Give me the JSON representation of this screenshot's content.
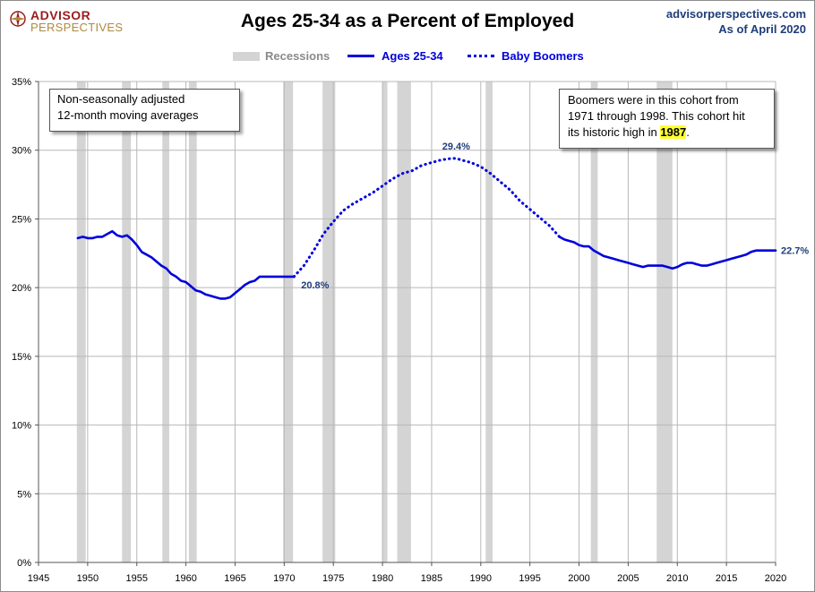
{
  "brand": {
    "line1": "ADVISOR",
    "line2": "PERSPECTIVES"
  },
  "title": "Ages 25-34 as a Percent of Employed",
  "source": {
    "site": "advisorperspectives.com",
    "date": "As of April 2020"
  },
  "legend": {
    "recessions": "Recessions",
    "ages": "Ages 25-34",
    "boomers": "Baby Boomers"
  },
  "notes": {
    "left": [
      "Non-seasonally adjusted",
      "12-month moving averages"
    ],
    "right_line1": "Boomers were in this cohort from",
    "right_line2": "1971  through 1998.  This cohort hit",
    "right_line3_pre": "its historic high in ",
    "right_line3_hl": "1987",
    "right_line3_post": "."
  },
  "colors": {
    "series": "#0000dc",
    "recession": "#d4d4d4",
    "grid": "#b8b8b8",
    "label": "#1f3d7a"
  },
  "chart_data": {
    "type": "line",
    "title": "Ages 25-34 as a Percent of Employed",
    "xlabel": "",
    "ylabel": "",
    "xlim": [
      1945,
      2020
    ],
    "ylim": [
      0,
      35
    ],
    "x_ticks": [
      1945,
      1950,
      1955,
      1960,
      1965,
      1970,
      1975,
      1980,
      1985,
      1990,
      1995,
      2000,
      2005,
      2010,
      2015,
      2020
    ],
    "y_ticks": [
      0,
      5,
      10,
      15,
      20,
      25,
      30,
      35
    ],
    "y_tick_labels": [
      "0%",
      "5%",
      "10%",
      "15%",
      "20%",
      "25%",
      "30%",
      "35%"
    ],
    "grid": true,
    "legend_position": "top-center",
    "recessions": [
      [
        1948.9,
        1949.8
      ],
      [
        1953.5,
        1954.4
      ],
      [
        1957.6,
        1958.3
      ],
      [
        1960.3,
        1961.1
      ],
      [
        1969.9,
        1970.9
      ],
      [
        1973.9,
        1975.2
      ],
      [
        1980.0,
        1980.5
      ],
      [
        1981.5,
        1982.9
      ],
      [
        1990.5,
        1991.2
      ],
      [
        2001.2,
        2001.9
      ],
      [
        2007.9,
        2009.5
      ]
    ],
    "series": [
      {
        "name": "Ages 25-34",
        "style": "solid",
        "x": [
          1949.0,
          1949.5,
          1950.0,
          1950.5,
          1951.0,
          1951.5,
          1952.0,
          1952.5,
          1953.0,
          1953.5,
          1954.0,
          1954.5,
          1955.0,
          1955.5,
          1956.0,
          1956.5,
          1957.0,
          1957.5,
          1958.0,
          1958.5,
          1959.0,
          1959.5,
          1960.0,
          1960.5,
          1961.0,
          1961.5,
          1962.0,
          1962.5,
          1963.0,
          1963.5,
          1964.0,
          1964.5,
          1965.0,
          1965.5,
          1966.0,
          1966.5,
          1967.0,
          1967.5,
          1968.0,
          1968.5,
          1969.0,
          1969.5,
          1970.0,
          1970.5,
          1971.0
        ],
        "y": [
          23.6,
          23.7,
          23.6,
          23.6,
          23.7,
          23.7,
          23.9,
          24.1,
          23.8,
          23.7,
          23.8,
          23.5,
          23.1,
          22.6,
          22.4,
          22.2,
          21.9,
          21.6,
          21.4,
          21.0,
          20.8,
          20.5,
          20.4,
          20.1,
          19.8,
          19.7,
          19.5,
          19.4,
          19.3,
          19.2,
          19.2,
          19.3,
          19.6,
          19.9,
          20.2,
          20.4,
          20.5,
          20.8,
          20.8,
          20.8,
          20.8,
          20.8,
          20.8,
          20.8,
          20.8
        ]
      },
      {
        "name": "Baby Boomers",
        "style": "dotted",
        "x": [
          1971.0,
          1972.0,
          1973.0,
          1974.0,
          1975.0,
          1976.0,
          1977.0,
          1978.0,
          1979.0,
          1980.0,
          1981.0,
          1982.0,
          1983.0,
          1984.0,
          1985.0,
          1986.0,
          1987.0,
          1987.5,
          1988.0,
          1989.0,
          1990.0,
          1991.0,
          1992.0,
          1993.0,
          1994.0,
          1995.0,
          1996.0,
          1997.0,
          1998.0
        ],
        "y": [
          20.8,
          21.6,
          22.7,
          23.9,
          24.8,
          25.6,
          26.1,
          26.5,
          26.9,
          27.4,
          27.9,
          28.3,
          28.5,
          28.9,
          29.1,
          29.3,
          29.4,
          29.4,
          29.3,
          29.1,
          28.8,
          28.3,
          27.7,
          27.1,
          26.3,
          25.7,
          25.1,
          24.5,
          23.7
        ]
      },
      {
        "name": "Ages 25-34 (after 1998)",
        "style": "solid",
        "x": [
          1998.0,
          1998.5,
          1999.0,
          1999.5,
          2000.0,
          2000.5,
          2001.0,
          2001.5,
          2002.0,
          2002.5,
          2003.0,
          2003.5,
          2004.0,
          2004.5,
          2005.0,
          2005.5,
          2006.0,
          2006.5,
          2007.0,
          2007.5,
          2008.0,
          2008.5,
          2009.0,
          2009.5,
          2010.0,
          2010.5,
          2011.0,
          2011.5,
          2012.0,
          2012.5,
          2013.0,
          2013.5,
          2014.0,
          2014.5,
          2015.0,
          2015.5,
          2016.0,
          2016.5,
          2017.0,
          2017.5,
          2018.0,
          2018.5,
          2019.0,
          2019.5,
          2020.0
        ],
        "y": [
          23.7,
          23.5,
          23.4,
          23.3,
          23.1,
          23.0,
          23.0,
          22.7,
          22.5,
          22.3,
          22.2,
          22.1,
          22.0,
          21.9,
          21.8,
          21.7,
          21.6,
          21.5,
          21.6,
          21.6,
          21.6,
          21.6,
          21.5,
          21.4,
          21.5,
          21.7,
          21.8,
          21.8,
          21.7,
          21.6,
          21.6,
          21.7,
          21.8,
          21.9,
          22.0,
          22.1,
          22.2,
          22.3,
          22.4,
          22.6,
          22.7,
          22.7,
          22.7,
          22.7,
          22.7
        ]
      }
    ],
    "annotations": [
      {
        "x": 1970.9,
        "y": 20.8,
        "text": "20.8%"
      },
      {
        "x": 1987.5,
        "y": 29.4,
        "text": "29.4%"
      },
      {
        "x": 2020.0,
        "y": 22.7,
        "text": "22.7%"
      }
    ]
  }
}
